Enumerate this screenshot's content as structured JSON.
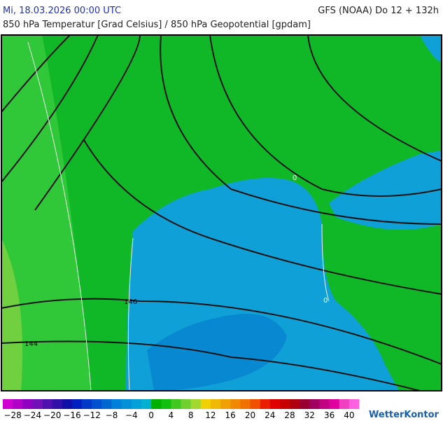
{
  "header": {
    "datetime": "Mi, 18.03.2026 00:00 UTC",
    "model": "GFS (NOAA) Do 12 + 132h",
    "subtitle": "850 hPa Temperatur [Grad Celsius] / 850 hPa Geopotential [gpdam]"
  },
  "map": {
    "contour_labels": [
      "146",
      "144",
      "0",
      "0"
    ]
  },
  "legend": {
    "labels": [
      "−28",
      "−24",
      "−20",
      "−16",
      "−12",
      "−8",
      "−4",
      "0",
      "4",
      "8",
      "12",
      "16",
      "20",
      "24",
      "28",
      "32",
      "36",
      "40"
    ],
    "colors": [
      "#d000d0",
      "#b000c8",
      "#9000c0",
      "#7010b8",
      "#5010b0",
      "#3010a8",
      "#1010a8",
      "#0020c0",
      "#0038c8",
      "#0050d0",
      "#0068d0",
      "#0080d8",
      "#0090d8",
      "#00a0d8",
      "#00b0d0",
      "#00b000",
      "#10c010",
      "#40c820",
      "#70d030",
      "#a0d830",
      "#f0d000",
      "#f0b800",
      "#f0a000",
      "#f08800",
      "#f07000",
      "#f05000",
      "#e82000",
      "#e00000",
      "#c80000",
      "#b00010",
      "#980030",
      "#a00060",
      "#c00080",
      "#e000a0",
      "#f040c0",
      "#ff60e0"
    ]
  },
  "logo": "WetterKontor"
}
